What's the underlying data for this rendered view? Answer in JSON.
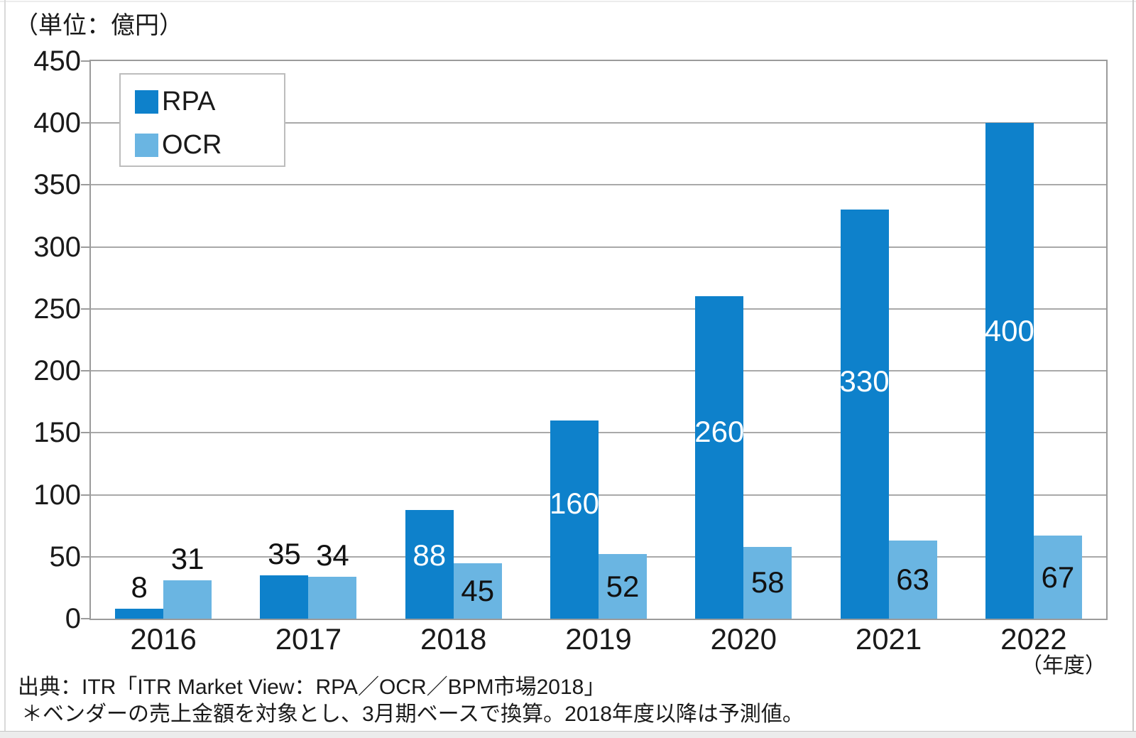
{
  "chart_data": {
    "type": "bar",
    "title": "",
    "unit_label": "（単位：億円）",
    "x_axis_unit": "（年度）",
    "categories": [
      "2016",
      "2017",
      "2018",
      "2019",
      "2020",
      "2021",
      "2022"
    ],
    "series": [
      {
        "name": "RPA",
        "color": "#0e81cb",
        "values": [
          8,
          35,
          88,
          160,
          260,
          330,
          400
        ],
        "label_placement": [
          "above",
          "above",
          "inside",
          "inside",
          "inside",
          "inside",
          "inside"
        ],
        "inside_label_color": "#ffffff",
        "inside_label_center_from_top": 0.42
      },
      {
        "name": "OCR",
        "color": "#6ab5e2",
        "values": [
          31,
          34,
          45,
          52,
          58,
          63,
          67
        ],
        "label_placement": [
          "above",
          "above",
          "inside",
          "inside",
          "inside",
          "inside",
          "inside"
        ],
        "inside_label_color": "#111111",
        "inside_label_center_from_top": 0.5
      }
    ],
    "ylim": [
      0,
      450
    ],
    "y_ticks": [
      0,
      50,
      100,
      150,
      200,
      250,
      300,
      350,
      400,
      450
    ],
    "grid": true,
    "legend_position": "top-left",
    "above_label_color": "#111111",
    "source": "出典：ITR「ITR Market View：RPA／OCR／BPM市場2018」",
    "note": "＊ベンダーの売上金額を対象とし、3月期ベースで換算。2018年度以降は予測値。"
  }
}
